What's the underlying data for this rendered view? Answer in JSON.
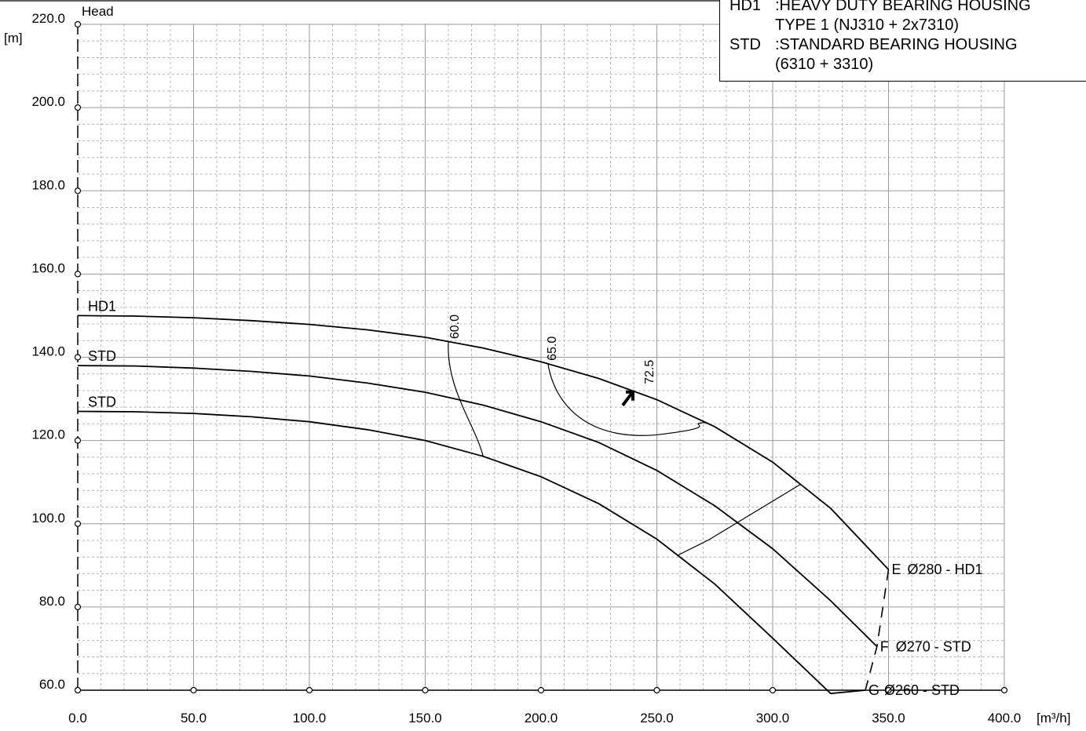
{
  "chart_data": {
    "type": "line",
    "title": "",
    "xlabel": "",
    "ylabel": "Head",
    "x_unit": "[m³/h]",
    "y_unit": "[m]",
    "xlim": [
      0,
      400
    ],
    "ylim": [
      60,
      220
    ],
    "x_ticks": [
      "0.0",
      "50.0",
      "100.0",
      "150.0",
      "200.0",
      "250.0",
      "300.0",
      "350.0",
      "400.0"
    ],
    "y_ticks": [
      "60.0",
      "80.0",
      "100.0",
      "120.0",
      "140.0",
      "160.0",
      "180.0",
      "200.0",
      "220.0"
    ],
    "grid": true,
    "series": [
      {
        "name": "Ø280 - HD1",
        "end_letter": "E",
        "start_label": "HD1",
        "x": [
          0,
          25,
          50,
          75,
          100,
          125,
          150,
          175,
          200,
          225,
          250,
          275,
          300,
          325,
          350
        ],
        "y": [
          150,
          149.9,
          149.5,
          148.8,
          147.9,
          146.6,
          144.8,
          142.2,
          138.9,
          134.9,
          129.8,
          123.3,
          114.8,
          103.7,
          89
        ]
      },
      {
        "name": "Ø270 - STD",
        "end_letter": "F",
        "start_label": "STD",
        "x": [
          0,
          25,
          50,
          75,
          100,
          125,
          150,
          175,
          200,
          225,
          250,
          275,
          300,
          325,
          345
        ],
        "y": [
          138,
          137.9,
          137.4,
          136.6,
          135.5,
          133.8,
          131.6,
          128.5,
          124.5,
          119.5,
          112.8,
          104.3,
          94,
          81.5,
          70.5
        ]
      },
      {
        "name": "Ø260 - STD",
        "end_letter": "G",
        "start_label": "STD",
        "x": [
          0,
          25,
          50,
          75,
          100,
          125,
          150,
          175,
          200,
          225,
          250,
          275,
          300,
          325,
          340
        ],
        "y": [
          127,
          126.9,
          126.5,
          125.7,
          124.5,
          122.6,
          120,
          116.2,
          111.3,
          104.8,
          96.3,
          85.5,
          72.5,
          59.2,
          60
        ]
      }
    ],
    "efficiency_labels": [
      "60.0",
      "65.0",
      "72.5"
    ],
    "notes": [
      {
        "code": "HD1",
        "text": ":HEAVY DUTY BEARING HOUSING",
        "cont": "TYPE 1 (NJ310 + 2x7310)"
      },
      {
        "code": "STD",
        "text": ":STANDARD BEARING HOUSING",
        "cont": "(6310 + 3310)"
      }
    ]
  }
}
